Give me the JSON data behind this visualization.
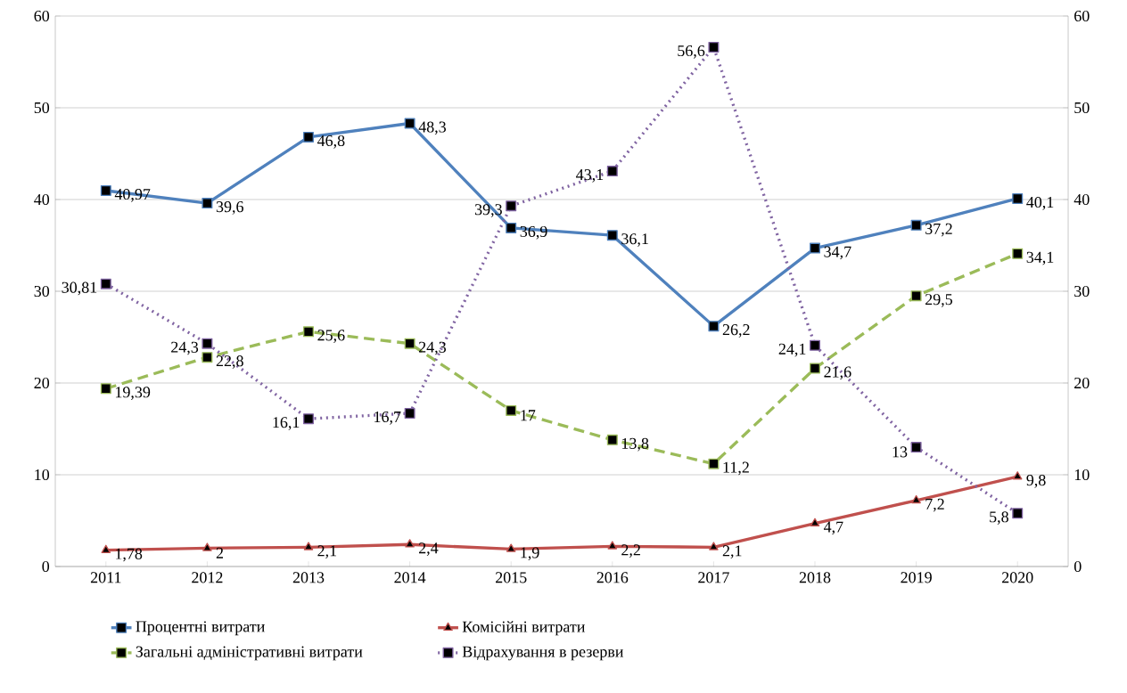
{
  "chart_data": {
    "type": "line",
    "categories": [
      "2011",
      "2012",
      "2013",
      "2014",
      "2015",
      "2016",
      "2017",
      "2018",
      "2019",
      "2020"
    ],
    "series": [
      {
        "name": "Процентні витрати",
        "color": "#4f81bd",
        "marker": "square",
        "line_style": "solid",
        "values": [
          40.97,
          39.6,
          46.8,
          48.3,
          36.9,
          36.1,
          26.2,
          34.7,
          37.2,
          40.1
        ],
        "value_labels": [
          "40,97",
          "39,6",
          "46,8",
          "48,3",
          "36,9",
          "36,1",
          "26,2",
          "34,7",
          "37,2",
          "40,1"
        ]
      },
      {
        "name": "Комісійні витрати",
        "color": "#c0504d",
        "marker": "triangle",
        "line_style": "solid",
        "values": [
          1.78,
          2,
          2.1,
          2.4,
          1.9,
          2.2,
          2.1,
          4.7,
          7.2,
          9.8
        ],
        "value_labels": [
          "1,78",
          "2",
          "2,1",
          "2,4",
          "1,9",
          "2,2",
          "2,1",
          "4,7",
          "7,2",
          "9,8"
        ]
      },
      {
        "name": "Загальні адміністративні витрати",
        "color": "#9bbb59",
        "marker": "square",
        "line_style": "dashed",
        "values": [
          19.39,
          22.8,
          25.6,
          24.3,
          17,
          13.8,
          11.2,
          21.6,
          29.5,
          34.1
        ],
        "value_labels": [
          "19,39",
          "22,8",
          "25,6",
          "24,3",
          "17",
          "13,8",
          "11,2",
          "21,6",
          "29,5",
          "34,1"
        ]
      },
      {
        "name": "Відрахування в резерви",
        "color": "#8064a2",
        "marker": "square",
        "line_style": "dotted",
        "values": [
          30.81,
          24.3,
          16.1,
          16.7,
          39.3,
          43.1,
          56.6,
          24.1,
          13,
          5.8
        ],
        "value_labels": [
          "30,81",
          "24,3",
          "16,1",
          "16,7",
          "39,3",
          "43,1",
          "56,6",
          "24,1",
          "13",
          "5,8"
        ]
      }
    ],
    "ylim": [
      0,
      60
    ],
    "yticks": [
      0,
      10,
      20,
      30,
      40,
      50,
      60
    ],
    "y2lim": [
      0,
      60
    ],
    "y2ticks": [
      0,
      10,
      20,
      30,
      40,
      50,
      60
    ],
    "grid": "y",
    "legend": "bottom"
  }
}
